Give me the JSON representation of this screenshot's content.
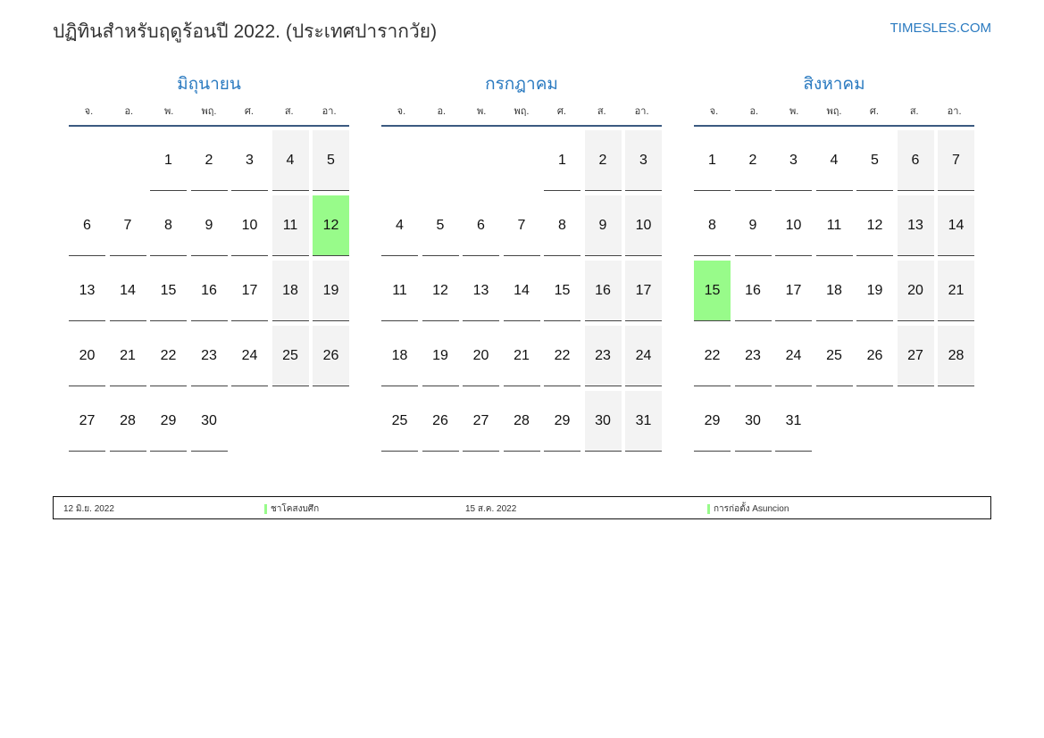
{
  "header": {
    "title": "ปฏิทินสำหรับฤดูร้อนปี 2022. (ประเทศปารากวัย)",
    "brand": "TIMESLES.COM"
  },
  "weekdays": [
    "จ.",
    "อ.",
    "พ.",
    "พฤ.",
    "ศ.",
    "ส.",
    "อา."
  ],
  "colors": {
    "accent": "#2a7ac0",
    "holiday": "#98fb8a",
    "weekend": "#f3f3f3"
  },
  "months": [
    {
      "name": "มิถุนายน",
      "first_weekday_index": 2,
      "days": 30,
      "holidays": [
        12
      ]
    },
    {
      "name": "กรกฎาคม",
      "first_weekday_index": 4,
      "days": 31,
      "holidays": []
    },
    {
      "name": "สิงหาคม",
      "first_weekday_index": 0,
      "days": 31,
      "holidays": [
        15
      ]
    }
  ],
  "legend": [
    {
      "date": "12 มิ.ย. 2022",
      "name": "ชาโคสงบศึก"
    },
    {
      "date": "15 ส.ค. 2022",
      "name": "การก่อตั้ง Asuncion"
    }
  ]
}
